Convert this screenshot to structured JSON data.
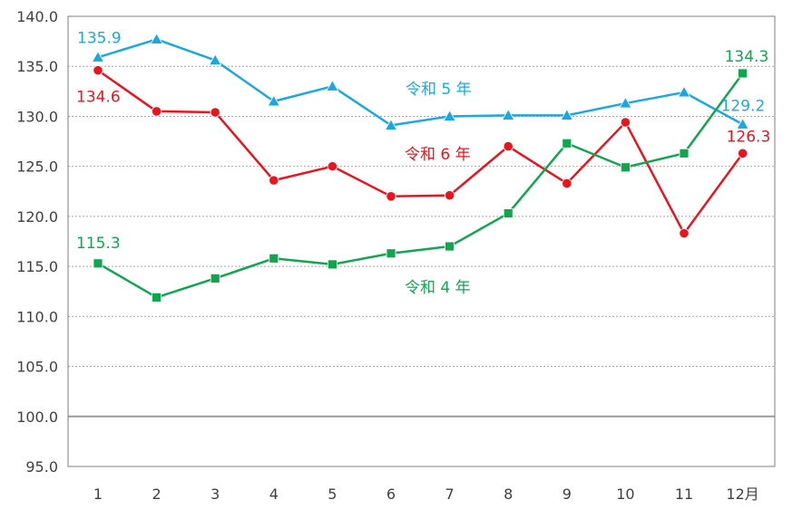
{
  "chart_data": {
    "type": "line",
    "categories": [
      "1",
      "2",
      "3",
      "4",
      "5",
      "6",
      "7",
      "8",
      "9",
      "10",
      "11",
      "12月"
    ],
    "ylim": [
      95.0,
      140.0
    ],
    "yticks": [
      "95.0",
      "100.0",
      "105.0",
      "110.0",
      "115.0",
      "120.0",
      "125.0",
      "130.0",
      "135.0",
      "140.0"
    ],
    "grid": "horizontal-dotted",
    "baseline": 100.0,
    "series": [
      {
        "name": "令和 5 年",
        "color": "#1AA8E0",
        "marker": "triangle",
        "values": [
          135.9,
          137.7,
          135.6,
          131.5,
          133.0,
          129.1,
          130.0,
          130.1,
          130.1,
          131.3,
          132.4,
          129.2
        ]
      },
      {
        "name": "令和 6 年",
        "color": "#E8141E",
        "marker": "circle",
        "values": [
          134.6,
          130.5,
          130.4,
          123.6,
          125.0,
          122.0,
          122.1,
          127.0,
          123.3,
          129.4,
          118.3,
          126.3
        ]
      },
      {
        "name": "令和 4 年",
        "color": "#12A54F",
        "marker": "square",
        "values": [
          115.3,
          111.9,
          113.8,
          115.8,
          115.2,
          116.3,
          117.0,
          120.3,
          127.3,
          124.9,
          126.3,
          134.3
        ]
      }
    ],
    "data_labels": [
      {
        "series": 0,
        "index": 0,
        "text": "135.9"
      },
      {
        "series": 0,
        "index": 11,
        "text": "129.2"
      },
      {
        "series": 1,
        "index": 0,
        "text": "134.6"
      },
      {
        "series": 1,
        "index": 11,
        "text": "126.3"
      },
      {
        "series": 2,
        "index": 0,
        "text": "115.3"
      },
      {
        "series": 2,
        "index": 11,
        "text": "134.3"
      }
    ]
  }
}
